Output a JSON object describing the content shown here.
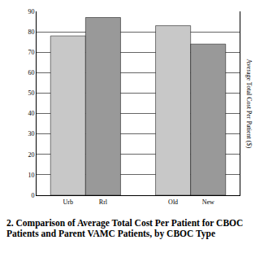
{
  "chart_data": {
    "type": "bar",
    "title": "2.  Comparison of Average Total Cost Per Patient for CBOC Patients and Parent VAMC Patients, by CBOC Type",
    "y_label": "Average Total Cost Per Patient ($)",
    "categories": [
      "Urb",
      "Rrl",
      null,
      "Old",
      "New"
    ],
    "values": [
      78,
      87,
      null,
      83,
      74
    ],
    "colors": [
      "#c8c8c8",
      "#999999",
      "#c8c8c8",
      "#999999"
    ],
    "ylim": [
      0,
      90
    ],
    "yticks": [
      0,
      10,
      20,
      30,
      40,
      50,
      60,
      70,
      80,
      90
    ],
    "grid": true
  }
}
